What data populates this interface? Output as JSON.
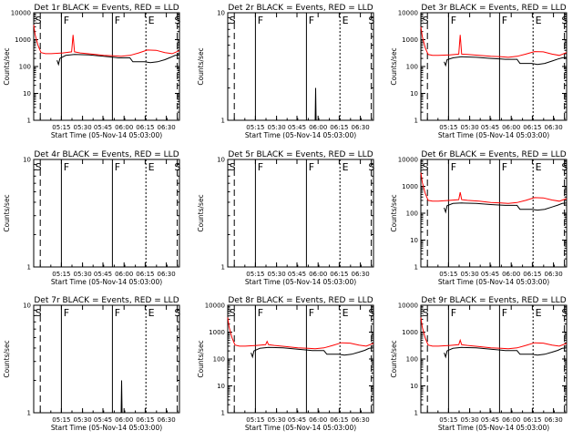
{
  "figure": {
    "xlabel": "Start Time (05-Nov-14 05:03:00)",
    "ylabel": "Counts/sec",
    "x_tick_labels": [
      "05:15",
      "05:30",
      "05:45",
      "06:00",
      "06:15",
      "06:30"
    ],
    "series_colors": {
      "events": "#000000",
      "lld": "#ff0000"
    }
  },
  "chart_data": [
    {
      "type": "line",
      "title": "Det 1r BLACK = Events, RED = LLD",
      "scale": "log",
      "ylim": [
        1,
        10000
      ],
      "y_tick_labels": [
        "1",
        "10",
        "100",
        "1000",
        "10000"
      ],
      "markers": [
        "S",
        "F",
        "F",
        "E",
        "S"
      ],
      "xlim_min": [
        0,
        100
      ],
      "series": [
        {
          "name": "Events",
          "color": "#000000",
          "x": [
            16,
            17,
            18,
            22,
            28,
            38,
            48,
            55,
            58,
            66,
            68,
            72,
            76,
            80,
            85,
            90,
            94,
            97,
            100
          ],
          "y": [
            170,
            120,
            200,
            260,
            280,
            270,
            240,
            220,
            210,
            210,
            150,
            150,
            150,
            140,
            150,
            180,
            220,
            260,
            270
          ]
        },
        {
          "name": "LLD",
          "color": "#ff0000",
          "x": [
            0,
            1,
            3,
            5,
            8,
            12,
            20,
            26,
            27,
            28,
            32,
            40,
            48,
            55,
            60,
            66,
            72,
            78,
            84,
            90,
            95,
            100
          ],
          "y": [
            3500,
            1500,
            600,
            330,
            300,
            300,
            320,
            350,
            1500,
            350,
            320,
            290,
            260,
            250,
            240,
            260,
            320,
            410,
            400,
            330,
            300,
            390
          ]
        }
      ]
    },
    {
      "type": "line",
      "title": "Det 2r BLACK = Events, RED = LLD",
      "scale": "log",
      "ylim": [
        1,
        10
      ],
      "y_tick_labels": [
        "1",
        "10"
      ],
      "markers": [
        "S",
        "F",
        "F",
        "E",
        "S"
      ],
      "xlim_min": [
        0,
        100
      ],
      "series": [
        {
          "name": "Events",
          "color": "#000000",
          "x": [
            60,
            60.3,
            60.6
          ],
          "y": [
            1,
            2,
            1
          ]
        }
      ]
    },
    {
      "type": "line",
      "title": "Det 3r BLACK = Events, RED = LLD",
      "scale": "log",
      "ylim": [
        1,
        10000
      ],
      "y_tick_labels": [
        "1",
        "10",
        "100",
        "1000",
        "10000"
      ],
      "markers": [
        "S",
        "F",
        "F",
        "E",
        "S"
      ],
      "xlim_min": [
        0,
        100
      ],
      "series": [
        {
          "name": "Events",
          "color": "#000000",
          "x": [
            16,
            17,
            18,
            22,
            28,
            38,
            48,
            55,
            58,
            66,
            68,
            72,
            76,
            80,
            85,
            90,
            94,
            97,
            100
          ],
          "y": [
            150,
            110,
            180,
            210,
            230,
            220,
            200,
            190,
            185,
            185,
            130,
            130,
            130,
            120,
            130,
            160,
            190,
            210,
            220
          ]
        },
        {
          "name": "LLD",
          "color": "#ff0000",
          "x": [
            0,
            1,
            3,
            5,
            8,
            12,
            20,
            26,
            27,
            28,
            32,
            40,
            48,
            55,
            60,
            66,
            72,
            78,
            84,
            90,
            95,
            100
          ],
          "y": [
            3000,
            1300,
            500,
            280,
            260,
            260,
            270,
            290,
            1500,
            290,
            280,
            260,
            240,
            230,
            220,
            240,
            290,
            360,
            350,
            290,
            260,
            330
          ]
        }
      ]
    },
    {
      "type": "line",
      "title": "Det 4r BLACK = Events, RED = LLD",
      "scale": "log",
      "ylim": [
        1,
        10
      ],
      "y_tick_labels": [
        "1",
        "10"
      ],
      "markers": [
        "S",
        "F",
        "F",
        "E",
        "S"
      ],
      "xlim_min": [
        0,
        100
      ],
      "series": []
    },
    {
      "type": "line",
      "title": "Det 5r BLACK = Events, RED = LLD",
      "scale": "log",
      "ylim": [
        1,
        10
      ],
      "y_tick_labels": [
        "1",
        "10"
      ],
      "markers": [
        "S",
        "F",
        "F",
        "E",
        "S"
      ],
      "xlim_min": [
        0,
        100
      ],
      "series": []
    },
    {
      "type": "line",
      "title": "Det 6r BLACK = Events, RED = LLD",
      "scale": "log",
      "ylim": [
        1,
        10000
      ],
      "y_tick_labels": [
        "1",
        "10",
        "100",
        "1000",
        "10000"
      ],
      "markers": [
        "S",
        "F",
        "F",
        "E",
        "S"
      ],
      "xlim_min": [
        0,
        100
      ],
      "series": [
        {
          "name": "Events",
          "color": "#000000",
          "x": [
            16,
            17,
            18,
            22,
            28,
            38,
            48,
            55,
            58,
            66,
            68,
            72,
            76,
            80,
            85,
            90,
            94,
            97,
            100
          ],
          "y": [
            160,
            110,
            190,
            230,
            240,
            230,
            210,
            200,
            195,
            195,
            140,
            140,
            140,
            130,
            140,
            170,
            200,
            230,
            240
          ]
        },
        {
          "name": "LLD",
          "color": "#ff0000",
          "x": [
            0,
            1,
            3,
            5,
            8,
            12,
            20,
            26,
            27,
            28,
            32,
            40,
            48,
            55,
            60,
            66,
            72,
            78,
            84,
            90,
            95,
            100
          ],
          "y": [
            3200,
            1400,
            550,
            300,
            280,
            280,
            300,
            320,
            600,
            320,
            300,
            280,
            250,
            240,
            230,
            250,
            300,
            380,
            370,
            310,
            280,
            350
          ]
        }
      ]
    },
    {
      "type": "line",
      "title": "Det 7r BLACK = Events, RED = LLD",
      "scale": "log",
      "ylim": [
        1,
        10
      ],
      "y_tick_labels": [
        "1",
        "10"
      ],
      "markers": [
        "S",
        "F",
        "F",
        "E",
        "S"
      ],
      "xlim_min": [
        0,
        100
      ],
      "series": [
        {
          "name": "Events",
          "color": "#000000",
          "x": [
            60,
            60.3,
            60.6
          ],
          "y": [
            1,
            2,
            1
          ]
        }
      ]
    },
    {
      "type": "line",
      "title": "Det 8r BLACK = Events, RED = LLD",
      "scale": "log",
      "ylim": [
        1,
        10000
      ],
      "y_tick_labels": [
        "1",
        "10",
        "100",
        "1000",
        "10000"
      ],
      "markers": [
        "S",
        "F",
        "F",
        "E",
        "S"
      ],
      "xlim_min": [
        0,
        100
      ],
      "series": [
        {
          "name": "Events",
          "color": "#000000",
          "x": [
            16,
            17,
            18,
            22,
            28,
            38,
            48,
            55,
            58,
            66,
            68,
            72,
            76,
            80,
            85,
            90,
            94,
            97,
            100
          ],
          "y": [
            170,
            120,
            200,
            250,
            270,
            260,
            230,
            215,
            205,
            205,
            150,
            150,
            150,
            140,
            150,
            180,
            210,
            250,
            260
          ]
        },
        {
          "name": "LLD",
          "color": "#ff0000",
          "x": [
            0,
            1,
            3,
            5,
            8,
            12,
            20,
            26,
            27,
            28,
            32,
            40,
            48,
            55,
            60,
            66,
            72,
            78,
            84,
            90,
            95,
            100
          ],
          "y": [
            3500,
            1500,
            600,
            330,
            300,
            300,
            320,
            340,
            450,
            340,
            320,
            290,
            260,
            250,
            240,
            260,
            320,
            400,
            390,
            330,
            300,
            380
          ]
        }
      ]
    },
    {
      "type": "line",
      "title": "Det 9r BLACK = Events, RED = LLD",
      "scale": "log",
      "ylim": [
        1,
        10000
      ],
      "y_tick_labels": [
        "1",
        "10",
        "100",
        "1000",
        "10000"
      ],
      "markers": [
        "S",
        "F",
        "F",
        "E",
        "S"
      ],
      "xlim_min": [
        0,
        100
      ],
      "series": [
        {
          "name": "Events",
          "color": "#000000",
          "x": [
            16,
            17,
            18,
            22,
            28,
            38,
            48,
            55,
            58,
            66,
            68,
            72,
            76,
            80,
            85,
            90,
            94,
            97,
            100
          ],
          "y": [
            170,
            120,
            200,
            250,
            270,
            260,
            230,
            215,
            205,
            205,
            150,
            150,
            150,
            140,
            150,
            180,
            210,
            250,
            260
          ]
        },
        {
          "name": "LLD",
          "color": "#ff0000",
          "x": [
            0,
            1,
            3,
            5,
            8,
            12,
            20,
            26,
            27,
            28,
            32,
            40,
            48,
            55,
            60,
            66,
            72,
            78,
            84,
            90,
            95,
            100
          ],
          "y": [
            3500,
            1500,
            600,
            330,
            300,
            300,
            320,
            340,
            500,
            340,
            320,
            290,
            260,
            250,
            240,
            260,
            320,
            400,
            390,
            330,
            300,
            380
          ]
        }
      ]
    }
  ]
}
